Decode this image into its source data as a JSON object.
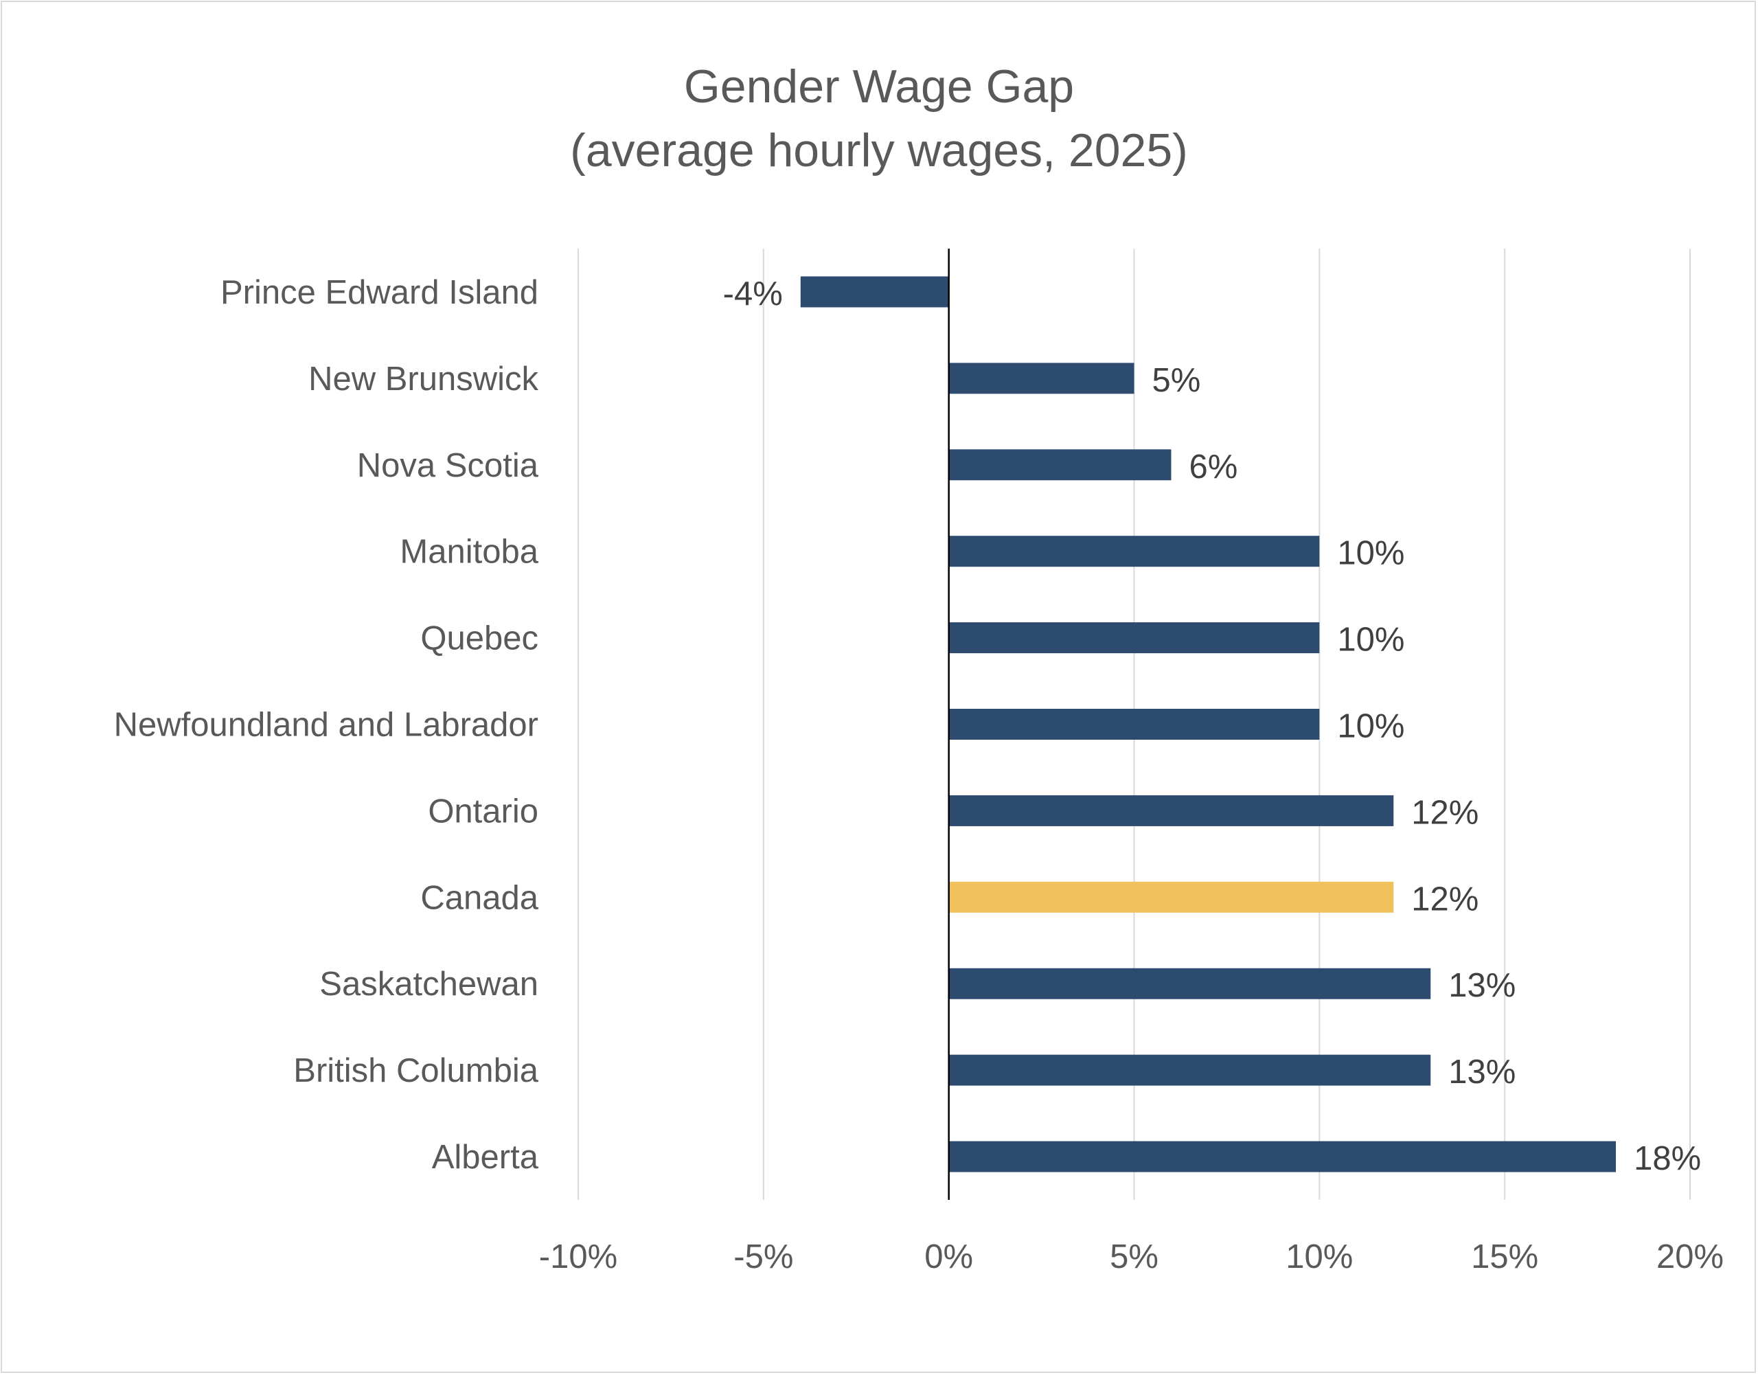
{
  "chart_data": {
    "type": "bar",
    "orientation": "horizontal",
    "title": "Gender Wage Gap",
    "subtitle": "(average hourly wages, 2025)",
    "xlabel": "",
    "ylabel": "",
    "categories": [
      "Prince Edward Island",
      "New Brunswick",
      "Nova Scotia",
      "Manitoba",
      "Quebec",
      "Newfoundland and Labrador",
      "Ontario",
      "Canada",
      "Saskatchewan",
      "British Columbia",
      "Alberta"
    ],
    "values": [
      -4,
      5,
      6,
      10,
      10,
      10,
      12,
      12,
      13,
      13,
      18
    ],
    "data_labels": [
      "-4%",
      "5%",
      "6%",
      "10%",
      "10%",
      "10%",
      "12%",
      "12%",
      "13%",
      "13%",
      "18%"
    ],
    "highlight": "Canada",
    "xlim": [
      -10,
      20
    ],
    "xticks": [
      -10,
      -5,
      0,
      5,
      10,
      15,
      20
    ],
    "xtick_labels": [
      "-10%",
      "-5%",
      "0%",
      "5%",
      "10%",
      "15%",
      "20%"
    ],
    "grid": "vertical",
    "legend": "none",
    "colors": {
      "bar": "#2D4A6F",
      "highlight": "#F1C25B",
      "text": "#595959",
      "grid": "#d9d9d9"
    }
  }
}
